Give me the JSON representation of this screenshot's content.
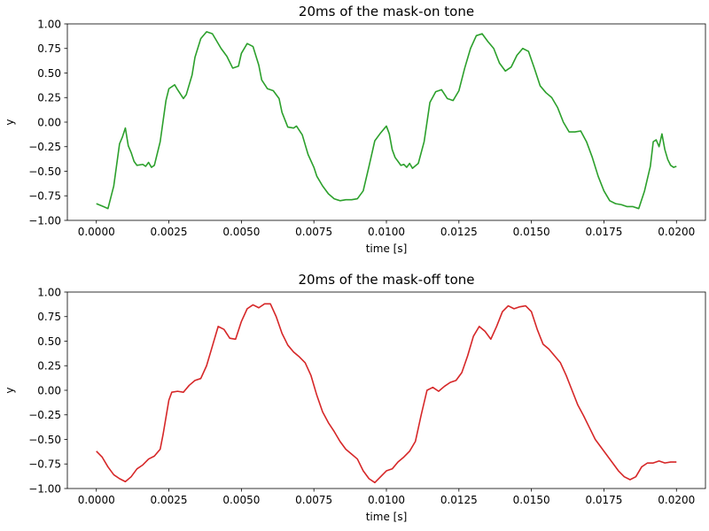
{
  "chart_data": [
    {
      "type": "line",
      "title": "20ms of the mask-on tone",
      "xlabel": "time [s]",
      "ylabel": "y",
      "xlim": [
        -0.001,
        0.021
      ],
      "ylim": [
        -1.0,
        1.0
      ],
      "xticks": [
        0.0,
        0.0025,
        0.005,
        0.0075,
        0.01,
        0.0125,
        0.015,
        0.0175,
        0.02
      ],
      "xtick_labels": [
        "0.0000",
        "0.0025",
        "0.0050",
        "0.0075",
        "0.0100",
        "0.0125",
        "0.0150",
        "0.0175",
        "0.0200"
      ],
      "yticks": [
        -1.0,
        -0.75,
        -0.5,
        -0.25,
        0.0,
        0.25,
        0.5,
        0.75,
        1.0
      ],
      "ytick_labels": [
        "−1.00",
        "−0.75",
        "−0.50",
        "−0.25",
        "0.00",
        "0.25",
        "0.50",
        "0.75",
        "1.00"
      ],
      "grid": false,
      "series": [
        {
          "color": "#2ca02c",
          "x": [
            0.0,
            0.00025,
            0.0004,
            0.0006,
            0.0008,
            0.0009,
            0.001,
            0.0011,
            0.0012,
            0.0013,
            0.0014,
            0.0016,
            0.0017,
            0.0018,
            0.0019,
            0.002,
            0.0022,
            0.0024,
            0.0025,
            0.0027,
            0.0028,
            0.003,
            0.0031,
            0.0033,
            0.0034,
            0.0036,
            0.0038,
            0.004,
            0.0041,
            0.0043,
            0.0045,
            0.0047,
            0.0049,
            0.005,
            0.0052,
            0.0054,
            0.0056,
            0.0057,
            0.0059,
            0.0061,
            0.0063,
            0.0064,
            0.0066,
            0.0068,
            0.0069,
            0.0071,
            0.0073,
            0.0075,
            0.0076,
            0.0078,
            0.008,
            0.0082,
            0.0084,
            0.0086,
            0.0088,
            0.009,
            0.0092,
            0.0094,
            0.0096,
            0.0098,
            0.01,
            0.0101,
            0.0102,
            0.0103,
            0.0104,
            0.0105,
            0.0106,
            0.0107,
            0.0108,
            0.0109,
            0.0111,
            0.0113,
            0.0115,
            0.0117,
            0.0119,
            0.0121,
            0.0123,
            0.0125,
            0.0127,
            0.0129,
            0.0131,
            0.0133,
            0.0135,
            0.0137,
            0.0139,
            0.0141,
            0.0143,
            0.0145,
            0.0147,
            0.0149,
            0.0151,
            0.0153,
            0.0155,
            0.0157,
            0.0159,
            0.0161,
            0.0163,
            0.0165,
            0.0167,
            0.0169,
            0.0171,
            0.0173,
            0.0175,
            0.0177,
            0.0179,
            0.0181,
            0.0183,
            0.0185,
            0.0187,
            0.0189,
            0.0191,
            0.0192,
            0.0193,
            0.0194,
            0.0195,
            0.0196,
            0.0197,
            0.0198,
            0.0199,
            0.02
          ],
          "y": [
            -0.83,
            -0.86,
            -0.88,
            -0.65,
            -0.22,
            -0.15,
            -0.06,
            -0.24,
            -0.31,
            -0.4,
            -0.44,
            -0.43,
            -0.45,
            -0.41,
            -0.46,
            -0.44,
            -0.2,
            0.22,
            0.34,
            0.38,
            0.33,
            0.24,
            0.28,
            0.48,
            0.66,
            0.85,
            0.92,
            0.9,
            0.85,
            0.75,
            0.67,
            0.55,
            0.57,
            0.7,
            0.8,
            0.77,
            0.58,
            0.43,
            0.34,
            0.32,
            0.24,
            0.1,
            -0.05,
            -0.06,
            -0.04,
            -0.13,
            -0.33,
            -0.46,
            -0.55,
            -0.65,
            -0.73,
            -0.78,
            -0.8,
            -0.79,
            -0.79,
            -0.78,
            -0.7,
            -0.45,
            -0.19,
            -0.11,
            -0.04,
            -0.12,
            -0.28,
            -0.36,
            -0.4,
            -0.44,
            -0.43,
            -0.46,
            -0.42,
            -0.47,
            -0.42,
            -0.2,
            0.2,
            0.31,
            0.33,
            0.24,
            0.22,
            0.32,
            0.55,
            0.75,
            0.88,
            0.9,
            0.82,
            0.75,
            0.6,
            0.52,
            0.56,
            0.68,
            0.75,
            0.72,
            0.55,
            0.37,
            0.3,
            0.25,
            0.15,
            0.0,
            -0.1,
            -0.1,
            -0.09,
            -0.2,
            -0.36,
            -0.55,
            -0.7,
            -0.8,
            -0.83,
            -0.84,
            -0.86,
            -0.86,
            -0.88,
            -0.7,
            -0.45,
            -0.2,
            -0.18,
            -0.25,
            -0.12,
            -0.28,
            -0.38,
            -0.44,
            -0.46,
            -0.45
          ]
        }
      ]
    },
    {
      "type": "line",
      "title": "20ms of the mask-off tone",
      "xlabel": "time [s]",
      "ylabel": "y",
      "xlim": [
        -0.001,
        0.021
      ],
      "ylim": [
        -1.0,
        1.0
      ],
      "xticks": [
        0.0,
        0.0025,
        0.005,
        0.0075,
        0.01,
        0.0125,
        0.015,
        0.0175,
        0.02
      ],
      "xtick_labels": [
        "0.0000",
        "0.0025",
        "0.0050",
        "0.0075",
        "0.0100",
        "0.0125",
        "0.0150",
        "0.0175",
        "0.0200"
      ],
      "yticks": [
        -1.0,
        -0.75,
        -0.5,
        -0.25,
        0.0,
        0.25,
        0.5,
        0.75,
        1.0
      ],
      "ytick_labels": [
        "−1.00",
        "−0.75",
        "−0.50",
        "−0.25",
        "0.00",
        "0.25",
        "0.50",
        "0.75",
        "1.00"
      ],
      "grid": false,
      "series": [
        {
          "color": "#d62728",
          "x": [
            0.0,
            0.0002,
            0.0004,
            0.0006,
            0.0008,
            0.001,
            0.0012,
            0.0014,
            0.0016,
            0.0018,
            0.002,
            0.0022,
            0.0023,
            0.0025,
            0.0026,
            0.0028,
            0.003,
            0.0032,
            0.0034,
            0.0036,
            0.0038,
            0.004,
            0.0042,
            0.0044,
            0.0046,
            0.0048,
            0.005,
            0.0052,
            0.0054,
            0.0056,
            0.0058,
            0.006,
            0.0062,
            0.0064,
            0.0066,
            0.0068,
            0.007,
            0.0072,
            0.0074,
            0.0076,
            0.0078,
            0.008,
            0.0082,
            0.0084,
            0.0086,
            0.0088,
            0.009,
            0.0092,
            0.0094,
            0.0096,
            0.0098,
            0.01,
            0.0102,
            0.0104,
            0.0106,
            0.0108,
            0.011,
            0.0112,
            0.0114,
            0.0116,
            0.0118,
            0.012,
            0.0122,
            0.0124,
            0.0126,
            0.0128,
            0.013,
            0.0132,
            0.0134,
            0.0136,
            0.0138,
            0.014,
            0.0142,
            0.0144,
            0.0146,
            0.0148,
            0.015,
            0.0152,
            0.0154,
            0.0156,
            0.0158,
            0.016,
            0.0162,
            0.0164,
            0.0166,
            0.0168,
            0.017,
            0.0172,
            0.0174,
            0.0176,
            0.0178,
            0.018,
            0.0182,
            0.0184,
            0.0186,
            0.0188,
            0.019,
            0.0192,
            0.0194,
            0.0196,
            0.0198,
            0.02
          ],
          "y": [
            -0.62,
            -0.68,
            -0.78,
            -0.86,
            -0.9,
            -0.93,
            -0.88,
            -0.8,
            -0.76,
            -0.7,
            -0.67,
            -0.6,
            -0.45,
            -0.1,
            -0.02,
            -0.01,
            -0.02,
            0.05,
            0.1,
            0.12,
            0.25,
            0.45,
            0.65,
            0.62,
            0.53,
            0.52,
            0.7,
            0.83,
            0.87,
            0.84,
            0.88,
            0.88,
            0.75,
            0.58,
            0.46,
            0.39,
            0.34,
            0.28,
            0.15,
            -0.05,
            -0.22,
            -0.33,
            -0.42,
            -0.52,
            -0.6,
            -0.65,
            -0.7,
            -0.82,
            -0.9,
            -0.94,
            -0.88,
            -0.82,
            -0.8,
            -0.73,
            -0.68,
            -0.62,
            -0.52,
            -0.25,
            0.0,
            0.03,
            -0.01,
            0.04,
            0.08,
            0.1,
            0.18,
            0.35,
            0.55,
            0.65,
            0.6,
            0.52,
            0.65,
            0.8,
            0.86,
            0.83,
            0.85,
            0.86,
            0.8,
            0.62,
            0.47,
            0.42,
            0.35,
            0.28,
            0.15,
            0.0,
            -0.15,
            -0.26,
            -0.38,
            -0.5,
            -0.58,
            -0.66,
            -0.74,
            -0.82,
            -0.88,
            -0.91,
            -0.88,
            -0.78,
            -0.74,
            -0.74,
            -0.72,
            -0.74,
            -0.73,
            -0.73
          ]
        }
      ]
    }
  ]
}
